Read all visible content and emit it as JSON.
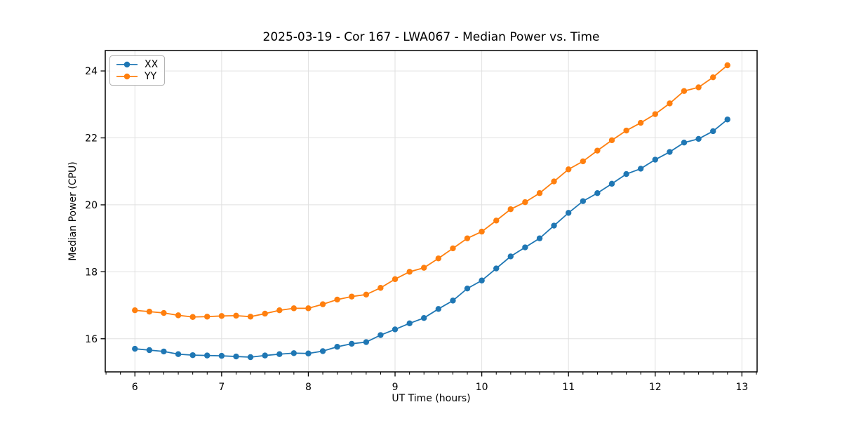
{
  "chart_data": {
    "type": "line",
    "title": "2025-03-19 - Cor 167 - LWA067 - Median Power vs. Time",
    "xlabel": "UT Time (hours)",
    "ylabel": "Median Power (CPU)",
    "x": [
      6.0,
      6.167,
      6.333,
      6.5,
      6.667,
      6.833,
      7.0,
      7.167,
      7.333,
      7.5,
      7.667,
      7.833,
      8.0,
      8.167,
      8.333,
      8.5,
      8.667,
      8.833,
      9.0,
      9.167,
      9.333,
      9.5,
      9.667,
      9.833,
      10.0,
      10.167,
      10.333,
      10.5,
      10.667,
      10.833,
      11.0,
      11.167,
      11.333,
      11.5,
      11.667,
      11.833,
      12.0,
      12.167,
      12.333,
      12.5,
      12.667,
      12.833
    ],
    "series": [
      {
        "name": "XX",
        "color": "#1f77b4",
        "values": [
          15.7,
          15.66,
          15.62,
          15.54,
          15.51,
          15.5,
          15.49,
          15.47,
          15.45,
          15.5,
          15.54,
          15.57,
          15.56,
          15.63,
          15.76,
          15.85,
          15.9,
          16.11,
          16.28,
          16.46,
          16.62,
          16.89,
          17.14,
          17.5,
          17.74,
          18.1,
          18.46,
          18.73,
          19.0,
          19.38,
          19.76,
          20.11,
          20.35,
          20.63,
          20.92,
          21.08,
          21.35,
          21.58,
          21.86,
          21.97,
          22.2,
          22.55
        ]
      },
      {
        "name": "YY",
        "color": "#ff7f0e",
        "values": [
          16.85,
          16.81,
          16.77,
          16.7,
          16.65,
          16.66,
          16.68,
          16.69,
          16.66,
          16.75,
          16.85,
          16.91,
          16.91,
          17.03,
          17.17,
          17.26,
          17.32,
          17.52,
          17.78,
          18.0,
          18.12,
          18.4,
          18.7,
          19.0,
          19.2,
          19.53,
          19.87,
          20.08,
          20.35,
          20.7,
          21.06,
          21.3,
          21.62,
          21.93,
          22.22,
          22.45,
          22.71,
          23.03,
          23.4,
          23.51,
          23.81,
          24.17
        ]
      }
    ],
    "axes": {
      "xlim": [
        5.658,
        13.175
      ],
      "ylim": [
        15.01,
        24.61
      ],
      "x_major_ticks": [
        6,
        7,
        8,
        9,
        10,
        11,
        12,
        13
      ],
      "x_tick_labels": [
        "6",
        "7",
        "8",
        "9",
        "10",
        "11",
        "12",
        "13"
      ],
      "x_minor_tick_step": 0.16667,
      "y_major_ticks": [
        16,
        18,
        20,
        22,
        24
      ],
      "y_tick_labels": [
        "16",
        "18",
        "20",
        "22",
        "24"
      ],
      "grid": "major"
    },
    "legend": {
      "position": "upper left",
      "entries": [
        "XX",
        "YY"
      ]
    },
    "style": {
      "grid_color": "#e0e0e0",
      "spine_color": "#000000",
      "background": "#ffffff",
      "marker": "circle",
      "marker_radius": 4.2,
      "line_width": 1.8
    }
  }
}
